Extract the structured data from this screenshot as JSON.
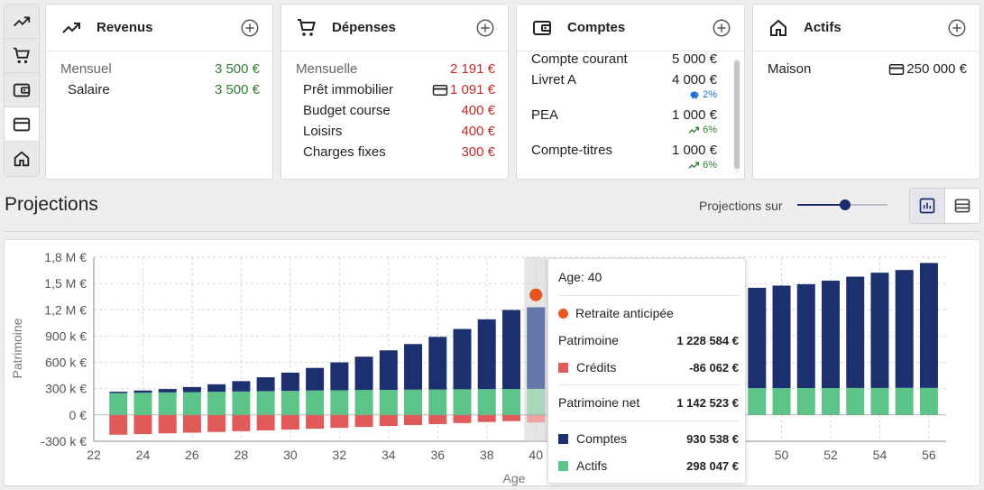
{
  "sidenav": {
    "items": [
      {
        "icon": "trending-up-icon"
      },
      {
        "icon": "cart-icon"
      },
      {
        "icon": "wallet-icon"
      },
      {
        "icon": "credit-card-icon"
      },
      {
        "icon": "home-icon"
      }
    ]
  },
  "cards": {
    "revenus": {
      "title": "Revenus",
      "head_label": "Mensuel",
      "head_value": "3 500 €",
      "items": [
        {
          "label": "Salaire",
          "value": "3 500 €"
        }
      ]
    },
    "depenses": {
      "title": "Dépenses",
      "head_label": "Mensuelle",
      "head_value": "2 191 €",
      "items": [
        {
          "label": "Prêt immobilier",
          "value": "1 091 €",
          "icon": "credit-card-icon"
        },
        {
          "label": "Budget course",
          "value": "400 €"
        },
        {
          "label": "Loisirs",
          "value": "400 €"
        },
        {
          "label": "Charges fixes",
          "value": "300 €"
        }
      ]
    },
    "comptes": {
      "title": "Comptes",
      "items": [
        {
          "label": "Compte courant",
          "value": "5 000 €",
          "rate": ""
        },
        {
          "label": "Livret A",
          "value": "4 000 €",
          "rate": "2%",
          "rate_icon": "piggy-bank-icon"
        },
        {
          "label": "PEA",
          "value": "1 000 €",
          "rate": "6%",
          "rate_icon": "trending-up-icon"
        },
        {
          "label": "Compte-titres",
          "value": "1 000 €",
          "rate": "6%",
          "rate_icon": "trending-up-icon"
        }
      ]
    },
    "actifs": {
      "title": "Actifs",
      "items": [
        {
          "label": "Maison",
          "value": "250 000 €",
          "icon": "credit-card-icon"
        }
      ]
    }
  },
  "projections": {
    "title": "Projections",
    "horizon_label": "Projections sur",
    "horizon_level": 0.53
  },
  "tooltip": {
    "age": "Age: 40",
    "event": "Retraite anticipée",
    "patrimoine_label": "Patrimoine",
    "patrimoine_value": "1 228 584 €",
    "credits_label": "Crédits",
    "credits_value": "-86 062 €",
    "net_label": "Patrimoine net",
    "net_value": "1 142 523 €",
    "comptes_label": "Comptes",
    "comptes_value": "930 538 €",
    "actifs_label": "Actifs",
    "actifs_value": "298 047 €"
  },
  "colors": {
    "comptes": "#1c2f6e",
    "actifs": "#5cc488",
    "credits": "#e05a5a",
    "event": "#e8541e",
    "green": "#2e7d32",
    "red": "#c62828"
  },
  "chart_data": {
    "type": "bar",
    "stacked": true,
    "xlabel": "Age",
    "ylabel": "Patrimoine",
    "x": [
      23,
      24,
      25,
      26,
      27,
      28,
      29,
      30,
      31,
      32,
      33,
      34,
      35,
      36,
      37,
      38,
      39,
      40,
      41,
      42,
      43,
      44,
      45,
      46,
      47,
      48,
      49,
      50,
      51,
      52,
      53,
      54,
      55,
      56
    ],
    "xticks": [
      22,
      24,
      26,
      28,
      30,
      32,
      34,
      36,
      38,
      40,
      50,
      52,
      54,
      56
    ],
    "ylim": [
      -300000,
      1800000
    ],
    "yticks": [
      -300000,
      0,
      300000,
      600000,
      900000,
      1200000,
      1500000,
      1800000
    ],
    "ytick_labels": [
      "-300 k €",
      "0 €",
      "300 k €",
      "600 k €",
      "900 k €",
      "1,2 M €",
      "1,5 M €",
      "1,8 M €"
    ],
    "highlight_x": 40,
    "event_marker": {
      "x": 40,
      "y": 1370000,
      "label": "Retraite anticipée"
    },
    "series": [
      {
        "name": "Actifs",
        "values": [
          250000,
          254000,
          258000,
          261000,
          265000,
          268000,
          272000,
          275000,
          279000,
          282000,
          285000,
          287000,
          289000,
          291000,
          293000,
          295000,
          296000,
          298047,
          299000,
          300000,
          301000,
          302000,
          303000,
          304000,
          305000,
          305000,
          306000,
          306000,
          307000,
          307000,
          308000,
          308000,
          309000,
          309000
        ]
      },
      {
        "name": "Comptes",
        "values": [
          15000,
          25000,
          38000,
          58000,
          85000,
          118000,
          158000,
          208000,
          258000,
          318000,
          380000,
          450000,
          520000,
          600000,
          688000,
          796000,
          902000,
          930538,
          950000,
          980000,
          1010000,
          1040000,
          1070000,
          1090000,
          1110000,
          1125000,
          1145000,
          1170000,
          1185000,
          1225000,
          1270000,
          1315000,
          1345000,
          1425000
        ]
      },
      {
        "name": "Crédits",
        "values": [
          -225000,
          -218000,
          -210000,
          -202000,
          -194000,
          -185000,
          -176000,
          -167000,
          -157000,
          -147000,
          -137000,
          -126000,
          -115000,
          -104000,
          -92000,
          -80000,
          -70000,
          -86062,
          0,
          0,
          0,
          0,
          0,
          0,
          0,
          0,
          0,
          0,
          0,
          0,
          0,
          0,
          0,
          0
        ]
      }
    ]
  }
}
